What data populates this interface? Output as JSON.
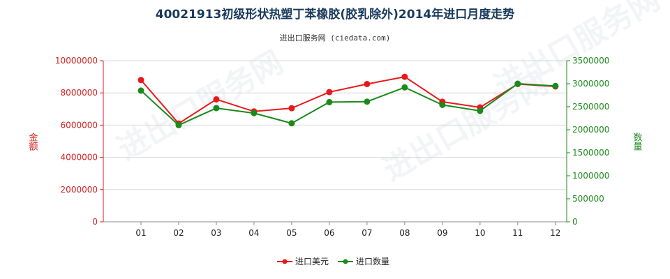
{
  "title": "40021913初级形状热塑丁苯橡胶(胶乳除外)2014年进口月度走势",
  "subtitle": "进出口服务网 (ciedata.com)",
  "colors": {
    "amount": "#e8191c",
    "quantity": "#1a8a1a",
    "left_axis": "#d62020",
    "right_axis": "#1f8a1f"
  },
  "chart_data": {
    "type": "line",
    "categories": [
      "01",
      "02",
      "03",
      "04",
      "05",
      "06",
      "07",
      "08",
      "09",
      "10",
      "11",
      "12"
    ],
    "left_axis": {
      "label": "金额",
      "min": 0,
      "max": 10000000,
      "ticks": [
        "0",
        "2000000",
        "4000000",
        "6000000",
        "8000000",
        "10000000"
      ]
    },
    "right_axis": {
      "label": "数量",
      "min": 0,
      "max": 3500000,
      "ticks": [
        "0",
        "500000",
        "1000000",
        "1500000",
        "2000000",
        "2500000",
        "3000000",
        "3500000"
      ]
    },
    "series": [
      {
        "name": "进口美元",
        "axis": "left",
        "values": [
          8800000,
          6100000,
          7600000,
          6850000,
          7050000,
          8050000,
          8550000,
          9000000,
          7450000,
          7100000,
          8550000,
          8400000
        ]
      },
      {
        "name": "进口数量",
        "axis": "right",
        "values": [
          2850000,
          2100000,
          2470000,
          2360000,
          2140000,
          2600000,
          2610000,
          2920000,
          2540000,
          2410000,
          3000000,
          2950000
        ]
      }
    ],
    "grid": "horizontal",
    "legend": "bottom-center"
  }
}
